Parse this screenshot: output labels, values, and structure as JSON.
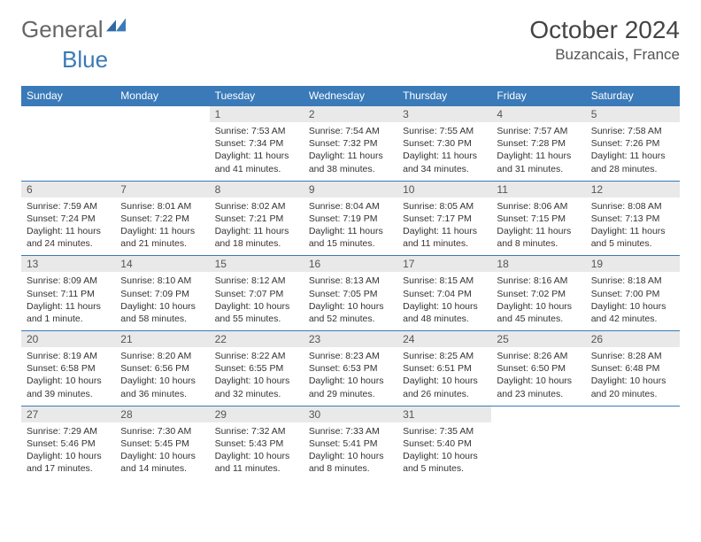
{
  "logo": {
    "text1": "General",
    "text2": "Blue"
  },
  "title": "October 2024",
  "location": "Buzancais, France",
  "colors": {
    "header_bg": "#3a7ab8",
    "header_text": "#ffffff",
    "daynum_bg": "#e9e9e9",
    "divider": "#3a7ab8",
    "page_bg": "#ffffff",
    "body_text": "#333333"
  },
  "weekdays": [
    "Sunday",
    "Monday",
    "Tuesday",
    "Wednesday",
    "Thursday",
    "Friday",
    "Saturday"
  ],
  "weeks": [
    [
      null,
      null,
      {
        "n": "1",
        "lines": [
          "Sunrise: 7:53 AM",
          "Sunset: 7:34 PM",
          "Daylight: 11 hours and 41 minutes."
        ]
      },
      {
        "n": "2",
        "lines": [
          "Sunrise: 7:54 AM",
          "Sunset: 7:32 PM",
          "Daylight: 11 hours and 38 minutes."
        ]
      },
      {
        "n": "3",
        "lines": [
          "Sunrise: 7:55 AM",
          "Sunset: 7:30 PM",
          "Daylight: 11 hours and 34 minutes."
        ]
      },
      {
        "n": "4",
        "lines": [
          "Sunrise: 7:57 AM",
          "Sunset: 7:28 PM",
          "Daylight: 11 hours and 31 minutes."
        ]
      },
      {
        "n": "5",
        "lines": [
          "Sunrise: 7:58 AM",
          "Sunset: 7:26 PM",
          "Daylight: 11 hours and 28 minutes."
        ]
      }
    ],
    [
      {
        "n": "6",
        "lines": [
          "Sunrise: 7:59 AM",
          "Sunset: 7:24 PM",
          "Daylight: 11 hours and 24 minutes."
        ]
      },
      {
        "n": "7",
        "lines": [
          "Sunrise: 8:01 AM",
          "Sunset: 7:22 PM",
          "Daylight: 11 hours and 21 minutes."
        ]
      },
      {
        "n": "8",
        "lines": [
          "Sunrise: 8:02 AM",
          "Sunset: 7:21 PM",
          "Daylight: 11 hours and 18 minutes."
        ]
      },
      {
        "n": "9",
        "lines": [
          "Sunrise: 8:04 AM",
          "Sunset: 7:19 PM",
          "Daylight: 11 hours and 15 minutes."
        ]
      },
      {
        "n": "10",
        "lines": [
          "Sunrise: 8:05 AM",
          "Sunset: 7:17 PM",
          "Daylight: 11 hours and 11 minutes."
        ]
      },
      {
        "n": "11",
        "lines": [
          "Sunrise: 8:06 AM",
          "Sunset: 7:15 PM",
          "Daylight: 11 hours and 8 minutes."
        ]
      },
      {
        "n": "12",
        "lines": [
          "Sunrise: 8:08 AM",
          "Sunset: 7:13 PM",
          "Daylight: 11 hours and 5 minutes."
        ]
      }
    ],
    [
      {
        "n": "13",
        "lines": [
          "Sunrise: 8:09 AM",
          "Sunset: 7:11 PM",
          "Daylight: 11 hours and 1 minute."
        ]
      },
      {
        "n": "14",
        "lines": [
          "Sunrise: 8:10 AM",
          "Sunset: 7:09 PM",
          "Daylight: 10 hours and 58 minutes."
        ]
      },
      {
        "n": "15",
        "lines": [
          "Sunrise: 8:12 AM",
          "Sunset: 7:07 PM",
          "Daylight: 10 hours and 55 minutes."
        ]
      },
      {
        "n": "16",
        "lines": [
          "Sunrise: 8:13 AM",
          "Sunset: 7:05 PM",
          "Daylight: 10 hours and 52 minutes."
        ]
      },
      {
        "n": "17",
        "lines": [
          "Sunrise: 8:15 AM",
          "Sunset: 7:04 PM",
          "Daylight: 10 hours and 48 minutes."
        ]
      },
      {
        "n": "18",
        "lines": [
          "Sunrise: 8:16 AM",
          "Sunset: 7:02 PM",
          "Daylight: 10 hours and 45 minutes."
        ]
      },
      {
        "n": "19",
        "lines": [
          "Sunrise: 8:18 AM",
          "Sunset: 7:00 PM",
          "Daylight: 10 hours and 42 minutes."
        ]
      }
    ],
    [
      {
        "n": "20",
        "lines": [
          "Sunrise: 8:19 AM",
          "Sunset: 6:58 PM",
          "Daylight: 10 hours and 39 minutes."
        ]
      },
      {
        "n": "21",
        "lines": [
          "Sunrise: 8:20 AM",
          "Sunset: 6:56 PM",
          "Daylight: 10 hours and 36 minutes."
        ]
      },
      {
        "n": "22",
        "lines": [
          "Sunrise: 8:22 AM",
          "Sunset: 6:55 PM",
          "Daylight: 10 hours and 32 minutes."
        ]
      },
      {
        "n": "23",
        "lines": [
          "Sunrise: 8:23 AM",
          "Sunset: 6:53 PM",
          "Daylight: 10 hours and 29 minutes."
        ]
      },
      {
        "n": "24",
        "lines": [
          "Sunrise: 8:25 AM",
          "Sunset: 6:51 PM",
          "Daylight: 10 hours and 26 minutes."
        ]
      },
      {
        "n": "25",
        "lines": [
          "Sunrise: 8:26 AM",
          "Sunset: 6:50 PM",
          "Daylight: 10 hours and 23 minutes."
        ]
      },
      {
        "n": "26",
        "lines": [
          "Sunrise: 8:28 AM",
          "Sunset: 6:48 PM",
          "Daylight: 10 hours and 20 minutes."
        ]
      }
    ],
    [
      {
        "n": "27",
        "lines": [
          "Sunrise: 7:29 AM",
          "Sunset: 5:46 PM",
          "Daylight: 10 hours and 17 minutes."
        ]
      },
      {
        "n": "28",
        "lines": [
          "Sunrise: 7:30 AM",
          "Sunset: 5:45 PM",
          "Daylight: 10 hours and 14 minutes."
        ]
      },
      {
        "n": "29",
        "lines": [
          "Sunrise: 7:32 AM",
          "Sunset: 5:43 PM",
          "Daylight: 10 hours and 11 minutes."
        ]
      },
      {
        "n": "30",
        "lines": [
          "Sunrise: 7:33 AM",
          "Sunset: 5:41 PM",
          "Daylight: 10 hours and 8 minutes."
        ]
      },
      {
        "n": "31",
        "lines": [
          "Sunrise: 7:35 AM",
          "Sunset: 5:40 PM",
          "Daylight: 10 hours and 5 minutes."
        ]
      },
      null,
      null
    ]
  ]
}
